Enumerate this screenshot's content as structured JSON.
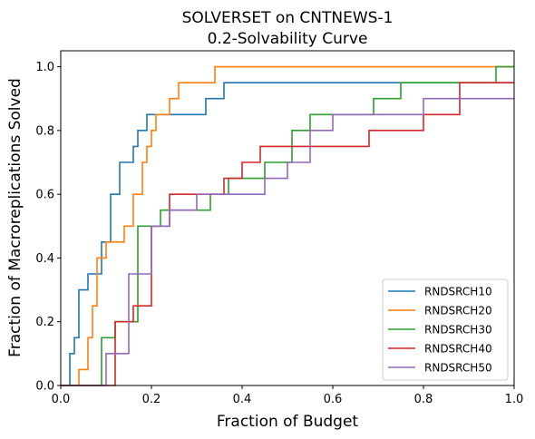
{
  "chart_data": {
    "type": "line",
    "step": "post",
    "title": [
      "SOLVERSET on CNTNEWS-1",
      "0.2-Solvability Curve"
    ],
    "xlabel": "Fraction of Budget",
    "ylabel": "Fraction of Macroreplications Solved",
    "xlim": [
      0,
      1
    ],
    "ylim": [
      0,
      1.05
    ],
    "xticks": [
      0,
      0.2,
      0.4,
      0.6,
      0.8,
      1
    ],
    "xtick_labels": [
      "0.0",
      "0.2",
      "0.4",
      "0.6",
      "0.8",
      "1.0"
    ],
    "yticks": [
      0,
      0.2,
      0.4,
      0.6,
      0.8,
      1
    ],
    "ytick_labels": [
      "0.0",
      "0.2",
      "0.4",
      "0.6",
      "0.8",
      "1.0"
    ],
    "grid": false,
    "legend_position": "lower right",
    "series": [
      {
        "name": "RNDSRCH10",
        "color": "#1f77b4",
        "x": [
          0,
          0.02,
          0.03,
          0.04,
          0.05,
          0.06,
          0.08,
          0.09,
          0.11,
          0.13,
          0.16,
          0.17,
          0.18,
          0.19,
          0.22,
          0.23,
          0.32,
          0.36,
          1
        ],
        "y": [
          0,
          0.1,
          0.15,
          0.3,
          0.3,
          0.35,
          0.35,
          0.45,
          0.6,
          0.7,
          0.75,
          0.8,
          0.8,
          0.85,
          0.85,
          0.85,
          0.9,
          0.95,
          0.95
        ]
      },
      {
        "name": "RNDSRCH20",
        "color": "#ff7f0e",
        "x": [
          0,
          0.04,
          0.06,
          0.07,
          0.08,
          0.09,
          0.1,
          0.11,
          0.12,
          0.14,
          0.15,
          0.16,
          0.18,
          0.19,
          0.2,
          0.21,
          0.22,
          0.24,
          0.25,
          0.26,
          0.31,
          0.34,
          1
        ],
        "y": [
          0,
          0.05,
          0.15,
          0.25,
          0.4,
          0.4,
          0.45,
          0.45,
          0.45,
          0.5,
          0.5,
          0.6,
          0.7,
          0.75,
          0.8,
          0.85,
          0.85,
          0.9,
          0.9,
          0.95,
          0.95,
          1.0,
          1.0
        ]
      },
      {
        "name": "RNDSRCH30",
        "color": "#2ca02c",
        "x": [
          0,
          0.09,
          0.1,
          0.12,
          0.14,
          0.17,
          0.2,
          0.22,
          0.28,
          0.33,
          0.35,
          0.37,
          0.39,
          0.42,
          0.45,
          0.51,
          0.55,
          0.69,
          0.75,
          0.96,
          1
        ],
        "y": [
          0,
          0.15,
          0.15,
          0.2,
          0.2,
          0.5,
          0.5,
          0.55,
          0.55,
          0.6,
          0.6,
          0.65,
          0.65,
          0.65,
          0.7,
          0.8,
          0.85,
          0.9,
          0.95,
          1.0,
          1.0
        ]
      },
      {
        "name": "RNDSRCH40",
        "color": "#d62728",
        "x": [
          0,
          0.12,
          0.14,
          0.16,
          0.17,
          0.2,
          0.24,
          0.3,
          0.36,
          0.39,
          0.4,
          0.42,
          0.44,
          0.5,
          0.54,
          0.68,
          0.8,
          0.88,
          1
        ],
        "y": [
          0,
          0.2,
          0.2,
          0.25,
          0.25,
          0.5,
          0.6,
          0.6,
          0.65,
          0.65,
          0.7,
          0.7,
          0.75,
          0.75,
          0.75,
          0.8,
          0.85,
          0.95,
          0.95
        ]
      },
      {
        "name": "RNDSRCH50",
        "color": "#9467bd",
        "x": [
          0,
          0.1,
          0.11,
          0.13,
          0.15,
          0.16,
          0.18,
          0.2,
          0.24,
          0.26,
          0.3,
          0.33,
          0.36,
          0.45,
          0.5,
          0.55,
          0.6,
          0.8,
          0.9,
          1
        ],
        "y": [
          0,
          0.1,
          0.1,
          0.1,
          0.35,
          0.35,
          0.35,
          0.5,
          0.55,
          0.55,
          0.6,
          0.6,
          0.6,
          0.65,
          0.7,
          0.8,
          0.85,
          0.9,
          0.9,
          0.9
        ]
      }
    ]
  }
}
